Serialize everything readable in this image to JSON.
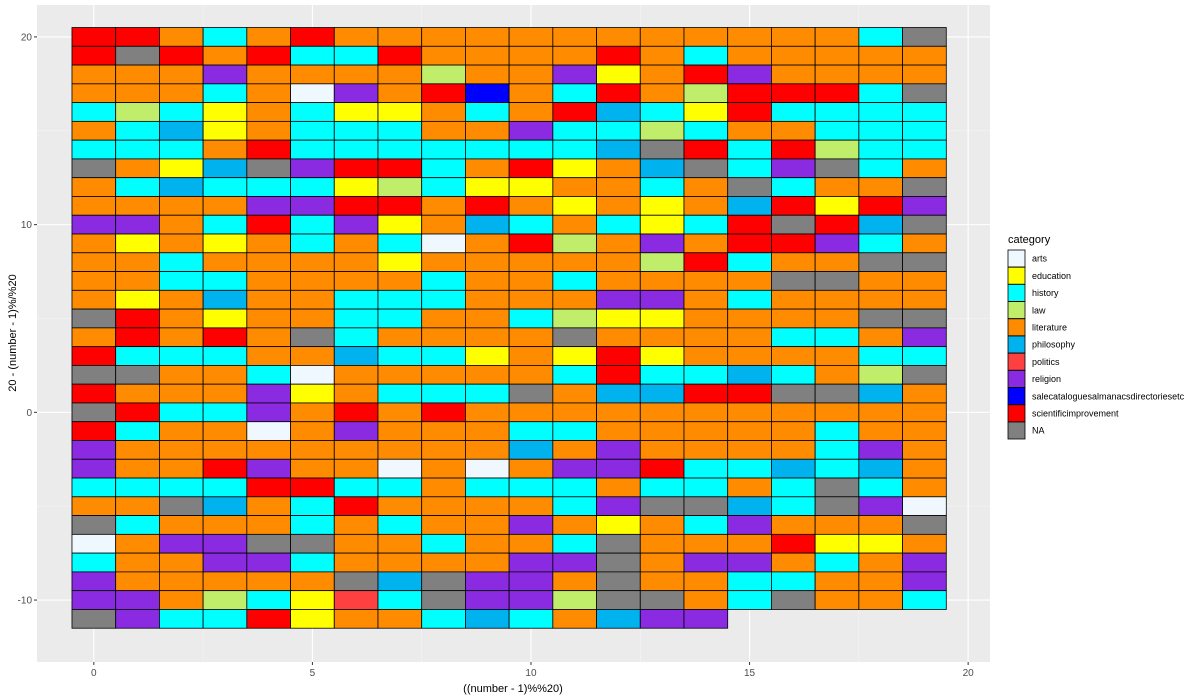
{
  "chart_data": {
    "type": "heatmap",
    "xlabel": "((number - 1)%%20)",
    "ylabel": "20 - (number - 1)%/%20",
    "xlim": [
      -1.3,
      20.5
    ],
    "ylim": [
      -13.3,
      21.7
    ],
    "x_ticks": [
      0,
      5,
      10,
      15,
      20
    ],
    "y_ticks": [
      -10,
      0,
      10,
      20
    ],
    "x_tick_labels": [
      "0",
      "5",
      "10",
      "15",
      "20"
    ],
    "y_tick_labels": [
      "-10",
      "0",
      "10",
      "20"
    ],
    "grid": true,
    "legend_position": "right",
    "legend_title": "category",
    "categories": [
      {
        "code": "A",
        "name": "arts",
        "color": "#F0F8FF"
      },
      {
        "code": "E",
        "name": "education",
        "color": "#FFFF00"
      },
      {
        "code": "H",
        "name": "history",
        "color": "#00FFFF"
      },
      {
        "code": "W",
        "name": "law",
        "color": "#C0EE6A"
      },
      {
        "code": "L",
        "name": "literature",
        "color": "#FF8C00"
      },
      {
        "code": "P",
        "name": "philosophy",
        "color": "#00B2EE"
      },
      {
        "code": "O",
        "name": "politics",
        "color": "#FF4040"
      },
      {
        "code": "G",
        "name": "religion",
        "color": "#8A2BE2"
      },
      {
        "code": "B",
        "name": "salecataloguesalmanacsdirectoriesetc",
        "color": "#0000FF"
      },
      {
        "code": "S",
        "name": "scientificimprovement",
        "color": "#FF0000"
      },
      {
        "code": "N",
        "name": "NA",
        "color": "#808080"
      }
    ],
    "top_row_y": 20,
    "rows": [
      "SSLHLSLLLLLLLLLLLLHN",
      "SNSLSHHSLLLLSLHLLLLL",
      "LLLGLLLLWLLGELSGLLLL",
      "LLLHLAGLSBLHSLWSSSHN",
      "HWHELHEELHLSPHESHHHH",
      "LHPELHHHLLGHHWHLLHHH",
      "HHHLSHHHHHHHPNSHSWHH",
      "NLEPNGSSHLSELPNHGNHL",
      "LHPHHHEWHEELLHLNHLLN",
      "LLLLGGSSLSLELELPSESG",
      "GGLHSHGELPHLHEHSNSPN",
      "LELELHLHALSWLGLSSGHL",
      "LLHLLLLELLLLLWSHLLNN",
      "LLHHLLLLHLLHLLLLNNLL",
      "LELPLLHHHLLLGGLHLLLL",
      "NSLELLHHLLHWEELLLLNN",
      "LSLSLNHLLLLNLLLLHHLG",
      "SHHHLLPHHELESELLLLHH",
      "NNLLHALLLLLHSHHPHLWN",
      "SLLLGELHHHNLPPSSNNPL",
      "NSHHGLSLSLLLLLLLLLLL",
      "SHLLALGLLLHHLLLLLHLL",
      "GLLLLLLLLLPLGLLLLHGL",
      "GLLSGLLALALGGSHHPHPL",
      "HHHHSSHHLHHHLHHLHNHL",
      "LLNPLHSLLLLHGNNPHNGA",
      "NHLLLHLHLLGLELHGLLLN",
      "ALGGNNLLHLLHNLLLSEEL",
      "HLLGGHLLLLGGNLGGLHLG",
      "GLLLLLNPNGGLNLLHHLLG",
      "GGLWHEOHNGGWNNLHNLLH",
      "NGHHSELLHPHLPGG"
    ]
  }
}
